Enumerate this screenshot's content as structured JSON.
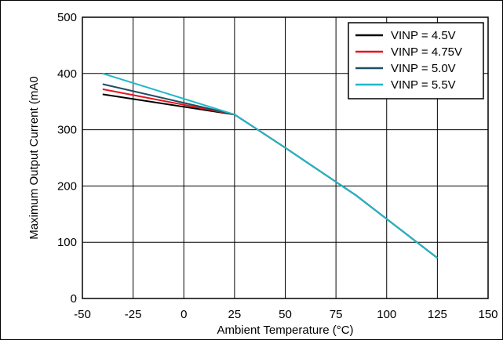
{
  "chart_data": {
    "type": "line",
    "xlabel": "Ambient Temperature (°C)",
    "ylabel": "Maximum Output Current (mA0",
    "xlim": [
      -50,
      150
    ],
    "ylim": [
      0,
      500
    ],
    "xticks": [
      -50,
      -25,
      0,
      25,
      50,
      75,
      100,
      125,
      150
    ],
    "yticks": [
      0,
      100,
      200,
      300,
      400,
      500
    ],
    "grid": true,
    "legend_position": "top-right",
    "series": [
      {
        "name": "VINP = 4.5V",
        "color": "#000000",
        "x": [
          -40,
          25,
          50,
          85,
          125
        ],
        "y": [
          363,
          327,
          268,
          183,
          72
        ]
      },
      {
        "name": "VINP = 4.75V",
        "color": "#e8141c",
        "x": [
          -40,
          25,
          50,
          85,
          125
        ],
        "y": [
          372,
          327,
          268,
          183,
          72
        ]
      },
      {
        "name": "VINP = 5.0V",
        "color": "#1f4e63",
        "x": [
          -40,
          25,
          50,
          85,
          125
        ],
        "y": [
          381,
          327,
          268,
          183,
          72
        ]
      },
      {
        "name": "VINP = 5.5V",
        "color": "#1fb8c8",
        "x": [
          -40,
          25,
          50,
          85,
          125
        ],
        "y": [
          400,
          327,
          268,
          183,
          72
        ]
      }
    ]
  }
}
